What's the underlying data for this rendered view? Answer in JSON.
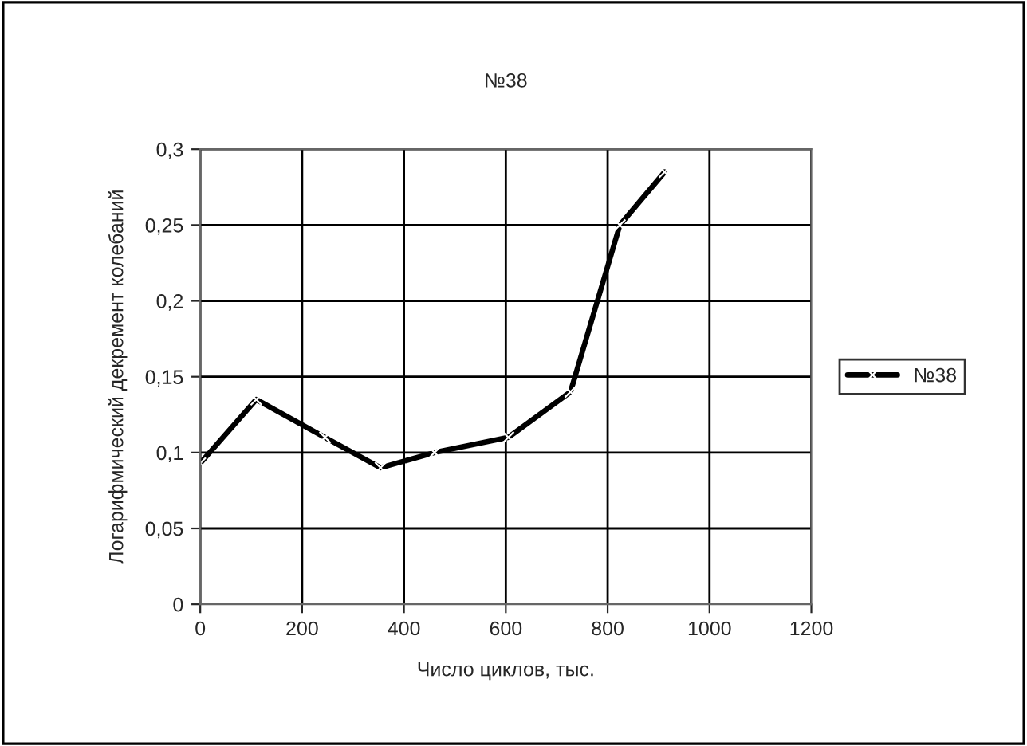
{
  "chart_data": {
    "type": "line",
    "title": "№38",
    "xlabel": "Число циклов, тыс.",
    "ylabel": "Логарифмический декремент колебаний",
    "x": [
      0,
      110,
      245,
      354,
      460,
      605,
      727,
      824,
      912
    ],
    "series": [
      {
        "name": "№38",
        "color": "#000000",
        "values": [
          0.093,
          0.135,
          0.11,
          0.09,
          0.1,
          0.11,
          0.14,
          0.25,
          0.285
        ]
      }
    ],
    "xlim": [
      0,
      1200
    ],
    "xticks": [
      0,
      200,
      400,
      600,
      800,
      1000,
      1200
    ],
    "ylim": [
      0,
      0.3
    ],
    "yticks": [
      {
        "value": 0,
        "label": "0"
      },
      {
        "value": 0.05,
        "label": "0,05"
      },
      {
        "value": 0.1,
        "label": "0,1"
      },
      {
        "value": 0.15,
        "label": "0,15"
      },
      {
        "value": 0.2,
        "label": "0,2"
      },
      {
        "value": 0.25,
        "label": "0,25"
      },
      {
        "value": 0.3,
        "label": "0,3"
      }
    ],
    "grid": true,
    "legend": "right",
    "marker": "cross",
    "line_style": "solid"
  }
}
